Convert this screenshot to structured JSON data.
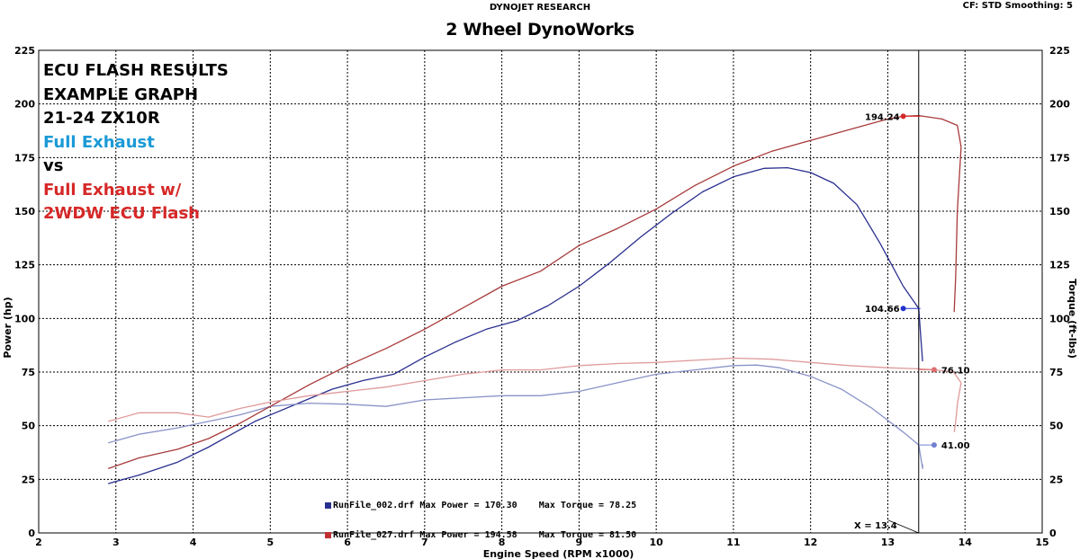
{
  "header": {
    "small_title": "DYNOJET RESEARCH",
    "title": "2 Wheel DynoWorks",
    "cf_info": "CF: STD  Smoothing: 5"
  },
  "annotation": {
    "line1": "ECU FLASH RESULTS",
    "line2": "EXAMPLE GRAPH",
    "line3": "21-24 ZX10R",
    "line4": "Full Exhaust",
    "line5": "vs",
    "line6": "Full Exhaust w/",
    "line7": "2WDW ECU Flash"
  },
  "colors": {
    "stock_power": "#2a2f8f",
    "stock_torque": "#8a93c8",
    "flash_power": "#a83a3a",
    "flash_torque": "#e09a9a",
    "annotation_blue": "#1a9ad6",
    "annotation_red": "#d62828"
  },
  "legend": {
    "row1": "RunFile_002.drf Max Power = 170.30    Max Torque = 78.25",
    "row2": "RunFile_027.drf Max Power = 194.58    Max Torque = 81.50"
  },
  "chart_data": {
    "type": "line",
    "xlabel": "Engine Speed (RPM x1000)",
    "ylabel": "Power (hp)",
    "y2label": "Torque (ft-lbs)",
    "xlim": [
      2,
      15
    ],
    "ylim": [
      0,
      225
    ],
    "y2lim": [
      0,
      225
    ],
    "x_ticks": [
      2,
      3,
      4,
      5,
      6,
      7,
      8,
      9,
      10,
      11,
      12,
      13,
      14,
      15
    ],
    "y_ticks": [
      0,
      25,
      50,
      75,
      100,
      125,
      150,
      175,
      200,
      225
    ],
    "grid": true,
    "cursor": {
      "x": 13.4,
      "label": "X = 13.4"
    },
    "markers": [
      {
        "label": "194.24",
        "x": 13.2,
        "y": 194.24
      },
      {
        "label": "104.66",
        "x": 13.2,
        "y": 104.66
      },
      {
        "label": "76.10",
        "x": 13.6,
        "y": 76.1
      },
      {
        "label": "41.00",
        "x": 13.6,
        "y": 41.0
      }
    ],
    "series": [
      {
        "name": "RunFile_002.drf",
        "axis": "power",
        "points": [
          [
            2.9,
            23
          ],
          [
            3.3,
            27
          ],
          [
            3.8,
            33
          ],
          [
            4.2,
            40
          ],
          [
            4.5,
            46
          ],
          [
            4.8,
            52
          ],
          [
            5.0,
            55
          ],
          [
            5.4,
            61
          ],
          [
            5.8,
            67
          ],
          [
            6.2,
            71
          ],
          [
            6.6,
            74
          ],
          [
            7.0,
            82
          ],
          [
            7.4,
            89
          ],
          [
            7.8,
            95
          ],
          [
            8.2,
            99
          ],
          [
            8.6,
            106
          ],
          [
            9.0,
            115
          ],
          [
            9.4,
            126
          ],
          [
            9.8,
            138
          ],
          [
            10.2,
            149
          ],
          [
            10.6,
            159
          ],
          [
            11.0,
            166
          ],
          [
            11.4,
            170
          ],
          [
            11.7,
            170.3
          ],
          [
            12.0,
            168
          ],
          [
            12.3,
            163
          ],
          [
            12.6,
            153
          ],
          [
            12.9,
            135
          ],
          [
            13.2,
            115
          ],
          [
            13.4,
            104.66
          ],
          [
            13.43,
            90
          ],
          [
            13.45,
            80
          ]
        ]
      },
      {
        "name": "RunFile_002.drf",
        "axis": "torque",
        "points": [
          [
            2.9,
            42
          ],
          [
            3.3,
            46
          ],
          [
            3.8,
            49
          ],
          [
            4.2,
            52
          ],
          [
            4.6,
            55
          ],
          [
            5.0,
            59
          ],
          [
            5.5,
            60.5
          ],
          [
            6.0,
            60
          ],
          [
            6.5,
            59
          ],
          [
            7.0,
            62
          ],
          [
            7.5,
            63
          ],
          [
            8.0,
            64
          ],
          [
            8.5,
            64
          ],
          [
            9.0,
            66
          ],
          [
            9.5,
            70
          ],
          [
            10.0,
            74
          ],
          [
            10.5,
            76
          ],
          [
            11.0,
            78
          ],
          [
            11.3,
            78.25
          ],
          [
            11.6,
            77
          ],
          [
            12.0,
            73
          ],
          [
            12.4,
            67
          ],
          [
            12.8,
            58
          ],
          [
            13.2,
            47
          ],
          [
            13.4,
            41
          ],
          [
            13.45,
            30
          ],
          [
            13.45,
            32
          ]
        ]
      },
      {
        "name": "RunFile_027.drf",
        "axis": "power",
        "points": [
          [
            2.9,
            30
          ],
          [
            3.3,
            35
          ],
          [
            3.8,
            39
          ],
          [
            4.2,
            44
          ],
          [
            4.6,
            51
          ],
          [
            5.0,
            59
          ],
          [
            5.5,
            69
          ],
          [
            6.0,
            78
          ],
          [
            6.5,
            86
          ],
          [
            7.0,
            95
          ],
          [
            7.5,
            105
          ],
          [
            8.0,
            115
          ],
          [
            8.5,
            122
          ],
          [
            9.0,
            134
          ],
          [
            9.5,
            142
          ],
          [
            10.0,
            151
          ],
          [
            10.5,
            162
          ],
          [
            11.0,
            171
          ],
          [
            11.5,
            178
          ],
          [
            12.0,
            183
          ],
          [
            12.5,
            188
          ],
          [
            13.0,
            193
          ],
          [
            13.2,
            194.24
          ],
          [
            13.4,
            194.58
          ],
          [
            13.7,
            193
          ],
          [
            13.9,
            190
          ],
          [
            13.95,
            180
          ],
          [
            13.9,
            150
          ],
          [
            13.88,
            120
          ],
          [
            13.86,
            103
          ]
        ]
      },
      {
        "name": "RunFile_027.drf",
        "axis": "torque",
        "points": [
          [
            2.9,
            52
          ],
          [
            3.3,
            56
          ],
          [
            3.8,
            56
          ],
          [
            4.2,
            54
          ],
          [
            4.6,
            58
          ],
          [
            5.0,
            61
          ],
          [
            5.5,
            64
          ],
          [
            6.0,
            66
          ],
          [
            6.5,
            68
          ],
          [
            7.0,
            71
          ],
          [
            7.5,
            74
          ],
          [
            8.0,
            76
          ],
          [
            8.5,
            76
          ],
          [
            9.0,
            78
          ],
          [
            9.5,
            79
          ],
          [
            10.0,
            79.5
          ],
          [
            10.5,
            80.5
          ],
          [
            11.0,
            81.5
          ],
          [
            11.5,
            81
          ],
          [
            12.0,
            79.5
          ],
          [
            12.5,
            78
          ],
          [
            13.0,
            77
          ],
          [
            13.4,
            76.5
          ],
          [
            13.6,
            76.1
          ],
          [
            13.85,
            75
          ],
          [
            13.95,
            70
          ],
          [
            13.9,
            60
          ],
          [
            13.88,
            52
          ],
          [
            13.86,
            47
          ]
        ]
      }
    ]
  }
}
